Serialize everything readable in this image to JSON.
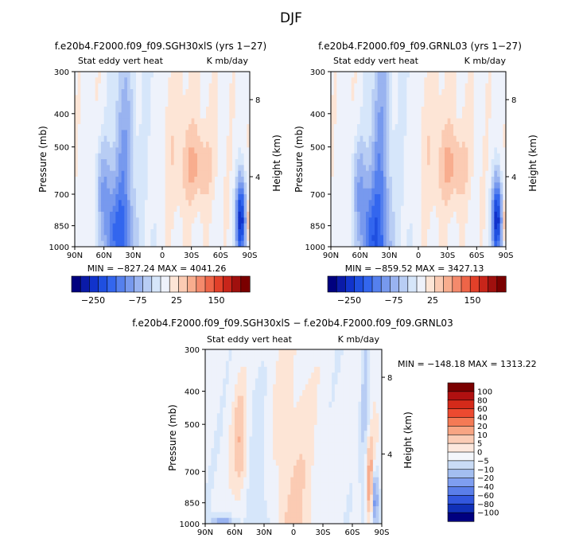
{
  "page_title": "DJF",
  "palette": {
    "neg": [
      "#00007f",
      "#0a1aa8",
      "#1133cc",
      "#1f4fe0",
      "#3366ee",
      "#5580ee",
      "#7799ee",
      "#99b3f0",
      "#b8cdf4",
      "#d6e6fa"
    ],
    "neutral": "#eef2fb",
    "pos": [
      "#fde5d6",
      "#fbcbb3",
      "#f8ad8e",
      "#f48a6c",
      "#ee6548",
      "#e24029",
      "#c8251a",
      "#a0100e",
      "#7a0000"
    ]
  },
  "chart_data": [
    {
      "id": "panel-a",
      "type": "heatmap",
      "title": "f.e20b4.F2000.f09_f09.SGH30xlS (yrs 1−27)",
      "field_label": "Stat eddy vert heat",
      "units": "K mb/day",
      "ylabel": "Pressure (mb)",
      "ylabel_right": "Height (km)",
      "x_ticks": [
        "90N",
        "60N",
        "30N",
        "0",
        "30S",
        "60S",
        "90S"
      ],
      "y_ticks": [
        "300",
        "400",
        "500",
        "700",
        "850",
        "1000"
      ],
      "y_ticks_right": [
        "8",
        "4"
      ],
      "min_max": "MIN = −827.24   MAX = 4041.26",
      "colorbar": {
        "orientation": "horizontal",
        "labels": [
          "−250",
          "−75",
          "25",
          "150"
        ]
      }
    },
    {
      "id": "panel-b",
      "type": "heatmap",
      "title": "f.e20b4.F2000.f09_f09.GRNL03 (yrs 1−27)",
      "field_label": "Stat eddy vert heat",
      "units": "K mb/day",
      "ylabel": "Pressure (mb)",
      "ylabel_right": "Height (km)",
      "x_ticks": [
        "90N",
        "60N",
        "30N",
        "0",
        "30S",
        "60S",
        "90S"
      ],
      "y_ticks": [
        "300",
        "400",
        "500",
        "700",
        "850",
        "1000"
      ],
      "y_ticks_right": [
        "8",
        "4"
      ],
      "min_max": "MIN = −859.52   MAX = 3427.13",
      "colorbar": {
        "orientation": "horizontal",
        "labels": [
          "−250",
          "−75",
          "25",
          "150"
        ]
      }
    },
    {
      "id": "panel-diff",
      "type": "heatmap",
      "title": "f.e20b4.F2000.f09_f09.SGH30xlS − f.e20b4.F2000.f09_f09.GRNL03",
      "field_label": "Stat eddy vert heat",
      "units": "K mb/day",
      "ylabel": "Pressure (mb)",
      "ylabel_right": "Height (km)",
      "x_ticks": [
        "90N",
        "60N",
        "30N",
        "0",
        "30S",
        "60S",
        "90S"
      ],
      "y_ticks": [
        "300",
        "400",
        "500",
        "700",
        "850",
        "1000"
      ],
      "y_ticks_right": [
        "8",
        "4"
      ],
      "min_max": "MIN = −148.18   MAX = 1313.22",
      "colorbar": {
        "orientation": "vertical",
        "labels": [
          "100",
          "80",
          "60",
          "40",
          "20",
          "10",
          "5",
          "0",
          "−5",
          "−10",
          "−20",
          "−40",
          "−60",
          "−80",
          "−100"
        ],
        "colors": [
          "#7a0000",
          "#b01010",
          "#d42a1a",
          "#ec4a30",
          "#f47a55",
          "#f8a583",
          "#fbccb5",
          "#fde8dd",
          "#f4f7fc",
          "#c9dbf5",
          "#a3bef0",
          "#7f9ef0",
          "#5a7ee9",
          "#3257de",
          "#1030b8",
          "#000080"
        ]
      }
    }
  ]
}
